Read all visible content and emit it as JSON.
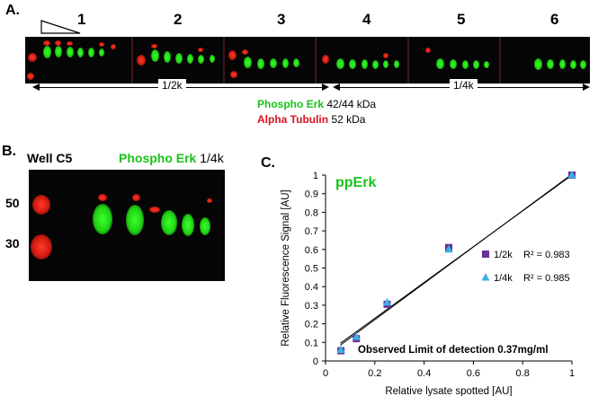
{
  "panelA": {
    "letter": "A.",
    "lanes": [
      "1",
      "2",
      "3",
      "4",
      "5",
      "6"
    ],
    "dilution_left": "1/2k",
    "dilution_right": "1/4k",
    "legend": [
      {
        "name": "Phospho Erk",
        "detail": "42/44 kDa",
        "color": "#19c21b"
      },
      {
        "name": "Alpha Tubulin",
        "detail": "52 kDa",
        "color": "#d8121b"
      }
    ]
  },
  "panelB": {
    "letter": "B.",
    "well": "Well C5",
    "antibody": "Phospho Erk",
    "dilution": "1/4k",
    "markers": [
      "50",
      "30"
    ]
  },
  "panelC": {
    "letter": "C."
  },
  "chart_data": {
    "type": "scatter",
    "title": "ppErk",
    "xlabel": "Relative lysate spotted [AU]",
    "ylabel": "Relative Fluorescence Signal [AU]",
    "xlim": [
      0,
      1
    ],
    "ylim": [
      0,
      1
    ],
    "xticks": [
      "0",
      "0.2",
      "0.4",
      "0.6",
      "0.8",
      "1"
    ],
    "yticks": [
      "0",
      "0.1",
      "0.2",
      "0.3",
      "0.4",
      "0.5",
      "0.6",
      "0.7",
      "0.8",
      "0.9",
      "1"
    ],
    "grid": false,
    "series": [
      {
        "name": "1/2k",
        "r2": "R² = 0.983",
        "marker": "square",
        "color": "#6a2f98",
        "x": [
          0.0625,
          0.125,
          0.25,
          0.5,
          1.0
        ],
        "y": [
          0.055,
          0.12,
          0.305,
          0.61,
          1.0
        ]
      },
      {
        "name": "1/4k",
        "r2": "R² = 0.985",
        "marker": "triangle",
        "color": "#3ab0e6",
        "x": [
          0.0625,
          0.125,
          0.25,
          0.5,
          1.0
        ],
        "y": [
          0.06,
          0.13,
          0.315,
          0.6,
          1.0
        ]
      }
    ],
    "trendlines": [
      {
        "x": [
          0.06,
          1.0
        ],
        "y": [
          0.085,
          1.005
        ]
      },
      {
        "x": [
          0.06,
          1.0
        ],
        "y": [
          0.095,
          1.0
        ]
      }
    ],
    "annotation": "Observed Limit of detection 0.37mg/ml",
    "legend_position": "right-middle"
  }
}
